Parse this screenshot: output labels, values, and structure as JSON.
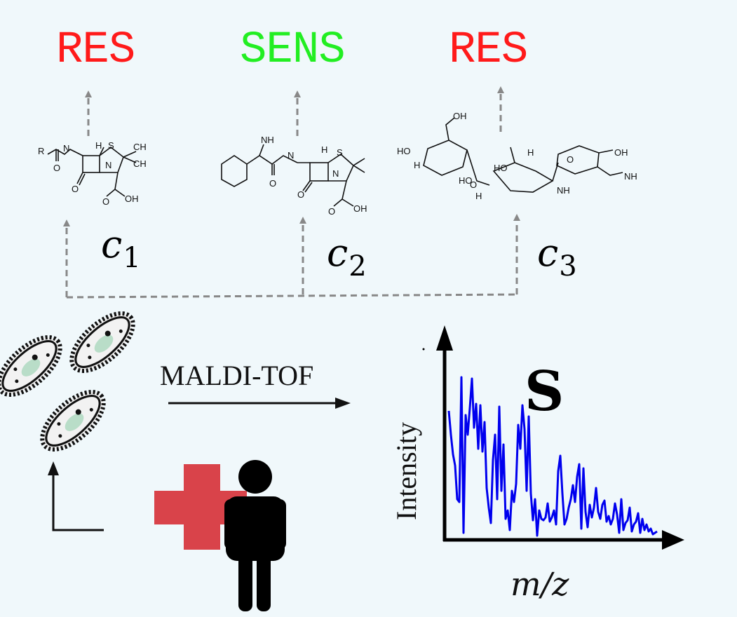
{
  "outcomes": [
    {
      "label": "RES",
      "color": "#ff1a1a"
    },
    {
      "label": "SENS",
      "color": "#22ee22"
    },
    {
      "label": "RES",
      "color": "#ff1a1a"
    }
  ],
  "compounds": [
    {
      "symbol": "c",
      "index": "1"
    },
    {
      "symbol": "c",
      "index": "2"
    },
    {
      "symbol": "c",
      "index": "3"
    }
  ],
  "process": {
    "method": "MALDI-TOF"
  },
  "spectrum": {
    "symbol": "S",
    "ylabel": "Intensity",
    "xlabel": "m/z",
    "line_color": "#0000ee"
  },
  "icons": [
    "bacterium-icon",
    "medical-cross-icon",
    "person-icon"
  ],
  "colors": {
    "background": "#f0f8fb",
    "cross": "#d9434a",
    "bacteria_fill": "#f2f2f2",
    "nucleoid": "#b9ddc8"
  }
}
